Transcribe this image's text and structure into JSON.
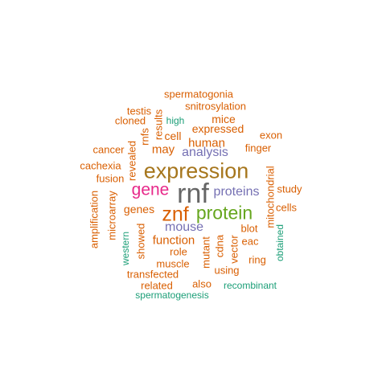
{
  "colors": {
    "orange": "#D95F02",
    "teal": "#1B9E77",
    "purple": "#7570B3",
    "magenta": "#E7298A",
    "green": "#66A61E",
    "brown": "#A6761D",
    "gray": "#666666"
  },
  "words": [
    {
      "text": "rnf",
      "color": "gray"
    },
    {
      "text": "expression",
      "color": "brown"
    },
    {
      "text": "znf",
      "color": "orange"
    },
    {
      "text": "protein",
      "color": "green"
    },
    {
      "text": "gene",
      "color": "magenta"
    },
    {
      "text": "proteins",
      "color": "purple"
    },
    {
      "text": "analysis",
      "color": "purple"
    },
    {
      "text": "mouse",
      "color": "purple"
    },
    {
      "text": "human",
      "color": "orange"
    },
    {
      "text": "function",
      "color": "orange"
    },
    {
      "text": "may",
      "color": "orange"
    },
    {
      "text": "expressed",
      "color": "orange"
    },
    {
      "text": "genes",
      "color": "orange"
    },
    {
      "text": "cell",
      "color": "orange"
    },
    {
      "text": "mice",
      "color": "orange"
    },
    {
      "text": "spermatogonia",
      "color": "orange"
    },
    {
      "text": "snitrosylation",
      "color": "orange"
    },
    {
      "text": "testis",
      "color": "orange"
    },
    {
      "text": "cloned",
      "color": "orange"
    },
    {
      "text": "high",
      "color": "teal"
    },
    {
      "text": "exon",
      "color": "orange"
    },
    {
      "text": "finger",
      "color": "orange"
    },
    {
      "text": "cancer",
      "color": "orange"
    },
    {
      "text": "cachexia",
      "color": "orange"
    },
    {
      "text": "fusion",
      "color": "orange"
    },
    {
      "text": "study",
      "color": "orange"
    },
    {
      "text": "cells",
      "color": "orange"
    },
    {
      "text": "blot",
      "color": "orange"
    },
    {
      "text": "eac",
      "color": "orange"
    },
    {
      "text": "ring",
      "color": "orange"
    },
    {
      "text": "role",
      "color": "orange"
    },
    {
      "text": "muscle",
      "color": "orange"
    },
    {
      "text": "using",
      "color": "orange"
    },
    {
      "text": "transfected",
      "color": "orange"
    },
    {
      "text": "related",
      "color": "orange"
    },
    {
      "text": "also",
      "color": "orange"
    },
    {
      "text": "recombinant",
      "color": "teal"
    },
    {
      "text": "spermatogenesis",
      "color": "teal"
    },
    {
      "text": "results",
      "color": "orange"
    },
    {
      "text": "rnfs",
      "color": "orange"
    },
    {
      "text": "revealed",
      "color": "orange"
    },
    {
      "text": "amplification",
      "color": "orange"
    },
    {
      "text": "microarray",
      "color": "orange"
    },
    {
      "text": "western",
      "color": "teal"
    },
    {
      "text": "showed",
      "color": "orange"
    },
    {
      "text": "mutant",
      "color": "orange"
    },
    {
      "text": "cdna",
      "color": "orange"
    },
    {
      "text": "vector",
      "color": "orange"
    },
    {
      "text": "mitochondrial",
      "color": "orange"
    },
    {
      "text": "obtained",
      "color": "teal"
    }
  ]
}
